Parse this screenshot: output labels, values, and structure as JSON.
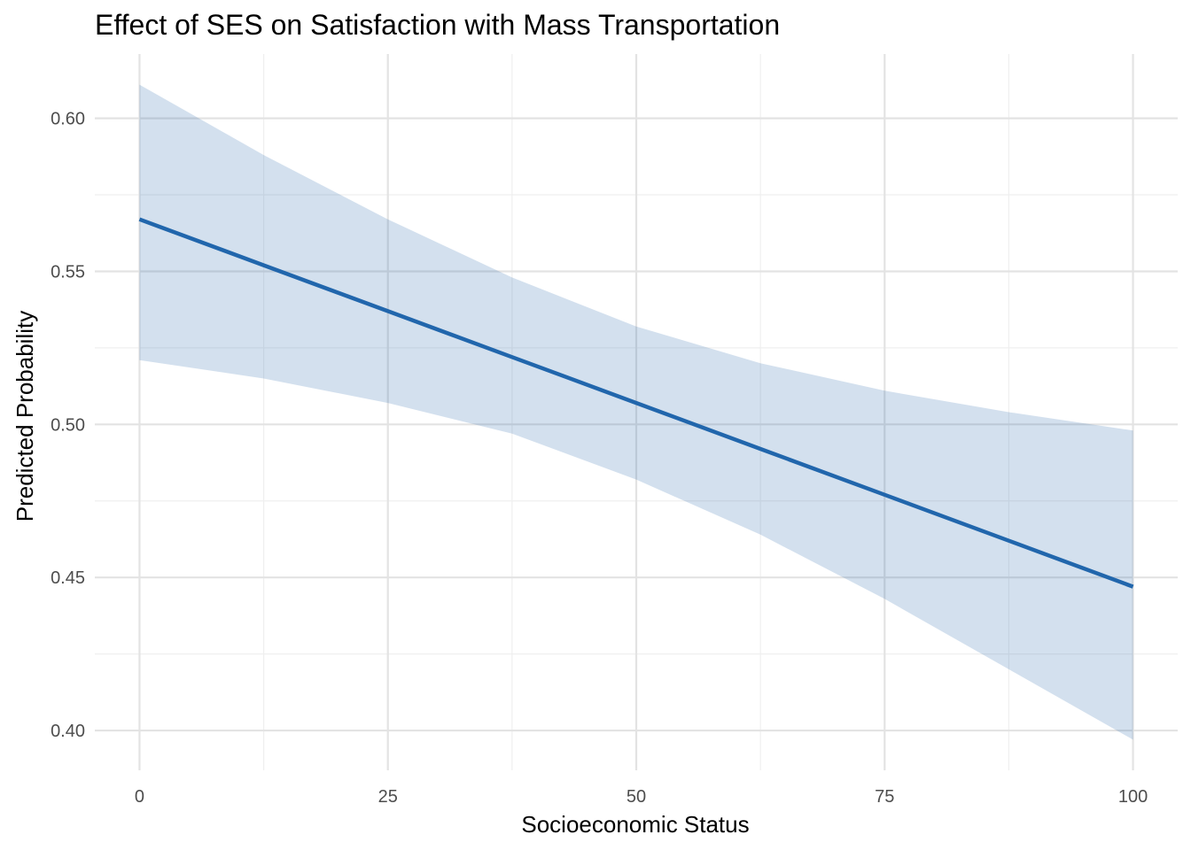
{
  "chart_data": {
    "type": "line",
    "title": "Effect of SES on Satisfaction with Mass Transportation",
    "xlabel": "Socioeconomic Status",
    "ylabel": "Predicted Probability",
    "xlim": [
      -4.5,
      104.5
    ],
    "ylim": [
      0.387,
      0.621
    ],
    "x_ticks": [
      0,
      25,
      50,
      75,
      100
    ],
    "x_tick_labels": [
      "0",
      "25",
      "50",
      "75",
      "100"
    ],
    "y_ticks": [
      0.4,
      0.45,
      0.5,
      0.55,
      0.6
    ],
    "y_tick_labels": [
      "0.40",
      "0.45",
      "0.50",
      "0.55",
      "0.60"
    ],
    "grid": true,
    "legend": "none",
    "line_color": "#2166ac",
    "band_color": "#2166ac",
    "band_opacity": 0.2,
    "series": [
      {
        "x": [
          0,
          12.5,
          25,
          37.5,
          50,
          62.5,
          75,
          87.5,
          100
        ],
        "y": [
          0.567,
          0.552,
          0.537,
          0.522,
          0.507,
          0.492,
          0.477,
          0.462,
          0.447
        ],
        "lower": [
          0.521,
          0.515,
          0.507,
          0.497,
          0.482,
          0.464,
          0.443,
          0.42,
          0.397
        ],
        "upper": [
          0.611,
          0.588,
          0.567,
          0.548,
          0.532,
          0.52,
          0.511,
          0.504,
          0.498
        ]
      }
    ]
  }
}
